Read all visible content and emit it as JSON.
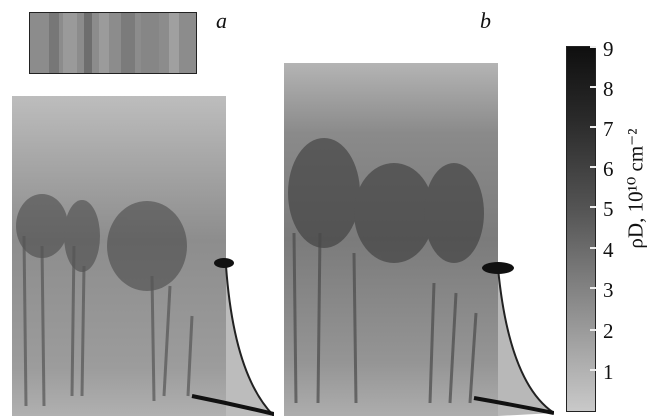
{
  "figure": {
    "panel_labels": [
      "a",
      "b"
    ],
    "colorbar": {
      "tick_labels": [
        "9",
        "8",
        "7",
        "6",
        "5",
        "4",
        "3",
        "2",
        "1"
      ],
      "title": "ρD, 10¹⁰ cm⁻²",
      "gradient": [
        "#0f0f0f",
        "#2a2a2a",
        "#555555",
        "#8a8a8a",
        "#c9c9c9"
      ]
    }
  }
}
